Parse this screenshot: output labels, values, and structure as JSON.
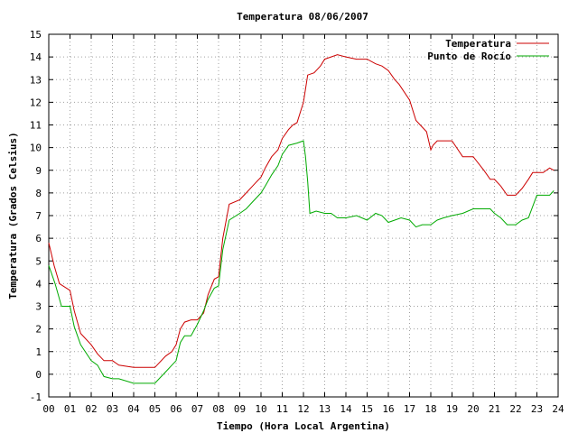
{
  "chart_data": {
    "type": "line",
    "title": "Temperatura 08/06/2007",
    "xlabel": "Tiempo (Hora Local Argentina)",
    "ylabel": "Temperatura (Grados Celsius)",
    "xlim": [
      0,
      24
    ],
    "ylim": [
      -1,
      15
    ],
    "x_ticks": [
      0,
      1,
      2,
      3,
      4,
      5,
      6,
      7,
      8,
      9,
      10,
      11,
      12,
      13,
      14,
      15,
      16,
      17,
      18,
      19,
      20,
      21,
      22,
      23,
      24
    ],
    "x_tick_labels": [
      "00",
      "01",
      "02",
      "03",
      "04",
      "05",
      "06",
      "07",
      "08",
      "09",
      "10",
      "11",
      "12",
      "13",
      "14",
      "15",
      "16",
      "17",
      "18",
      "19",
      "20",
      "21",
      "22",
      "23",
      "24"
    ],
    "y_ticks": [
      -1,
      0,
      1,
      2,
      3,
      4,
      5,
      6,
      7,
      8,
      9,
      10,
      11,
      12,
      13,
      14,
      15
    ],
    "grid": true,
    "legend_position": "top-right",
    "series": [
      {
        "name": "Temperatura",
        "color": "#cc0000",
        "x": [
          0,
          0.25,
          0.5,
          1,
          1.2,
          1.5,
          2,
          2.3,
          2.6,
          3,
          3.3,
          4,
          4.5,
          5,
          5.2,
          5.5,
          5.8,
          6,
          6.2,
          6.4,
          6.7,
          7,
          7.3,
          7.5,
          7.8,
          8,
          8.2,
          8.5,
          9,
          9.3,
          9.6,
          10,
          10.2,
          10.5,
          10.8,
          11,
          11.3,
          11.5,
          11.7,
          12,
          12.2,
          12.5,
          12.8,
          13,
          13.3,
          13.6,
          14,
          14.5,
          15,
          15.4,
          15.7,
          16,
          16.3,
          16.5,
          17,
          17.3,
          17.6,
          17.8,
          18,
          18.1,
          18.3,
          18.6,
          19,
          19.5,
          20,
          20.5,
          20.8,
          21,
          21.3,
          21.6,
          22,
          22.3,
          22.6,
          22.8,
          23,
          23.3,
          23.6,
          23.8
        ],
        "y": [
          5.8,
          4.8,
          4,
          3.7,
          2.8,
          1.8,
          1.3,
          0.9,
          0.6,
          0.6,
          0.4,
          0.3,
          0.3,
          0.3,
          0.5,
          0.8,
          1,
          1.3,
          2,
          2.3,
          2.4,
          2.4,
          2.7,
          3.5,
          4.2,
          4.3,
          6,
          7.5,
          7.7,
          8,
          8.3,
          8.7,
          9.1,
          9.6,
          9.9,
          10.4,
          10.8,
          11,
          11.1,
          12,
          13.2,
          13.3,
          13.6,
          13.9,
          14,
          14.1,
          14,
          13.9,
          13.9,
          13.7,
          13.6,
          13.4,
          13,
          12.8,
          12.1,
          11.2,
          10.9,
          10.7,
          9.9,
          10.1,
          10.3,
          10.3,
          10.3,
          9.6,
          9.6,
          9,
          8.6,
          8.6,
          8.3,
          7.9,
          7.9,
          8.2,
          8.6,
          8.9,
          8.9,
          8.9,
          9.1,
          9
        ]
      },
      {
        "name": "Punto de Rocío",
        "color": "#00aa00",
        "x": [
          0,
          0.3,
          0.6,
          1,
          1.2,
          1.5,
          2,
          2.3,
          2.6,
          3,
          3.3,
          4,
          4.5,
          5,
          5.2,
          5.5,
          5.8,
          6,
          6.2,
          6.4,
          6.7,
          7,
          7.3,
          7.5,
          7.8,
          8,
          8.2,
          8.5,
          9,
          9.3,
          9.6,
          10,
          10.2,
          10.5,
          10.8,
          11,
          11.3,
          11.7,
          12,
          12.1,
          12.2,
          12.3,
          12.6,
          13,
          13.3,
          13.6,
          14,
          14.5,
          15,
          15.4,
          15.7,
          16,
          16.3,
          16.6,
          17,
          17.3,
          17.6,
          18,
          18.3,
          18.6,
          19,
          19.5,
          20,
          20.5,
          20.8,
          21,
          21.3,
          21.6,
          22,
          22.3,
          22.6,
          23,
          23.3,
          23.6,
          23.8
        ],
        "y": [
          4.8,
          4,
          3,
          3,
          2.1,
          1.3,
          0.6,
          0.4,
          -0.1,
          -0.2,
          -0.2,
          -0.4,
          -0.4,
          -0.4,
          -0.2,
          0.1,
          0.4,
          0.6,
          1.4,
          1.7,
          1.7,
          2.2,
          2.8,
          3.3,
          3.8,
          3.9,
          5.5,
          6.8,
          7.1,
          7.3,
          7.6,
          8,
          8.3,
          8.8,
          9.2,
          9.7,
          10.1,
          10.2,
          10.3,
          9.6,
          8.5,
          7.1,
          7.2,
          7.1,
          7.1,
          6.9,
          6.9,
          7,
          6.8,
          7.1,
          7,
          6.7,
          6.8,
          6.9,
          6.8,
          6.5,
          6.6,
          6.6,
          6.8,
          6.9,
          7,
          7.1,
          7.3,
          7.3,
          7.3,
          7.1,
          6.9,
          6.6,
          6.6,
          6.8,
          6.9,
          7.9,
          7.9,
          7.9,
          8.1
        ]
      }
    ]
  }
}
